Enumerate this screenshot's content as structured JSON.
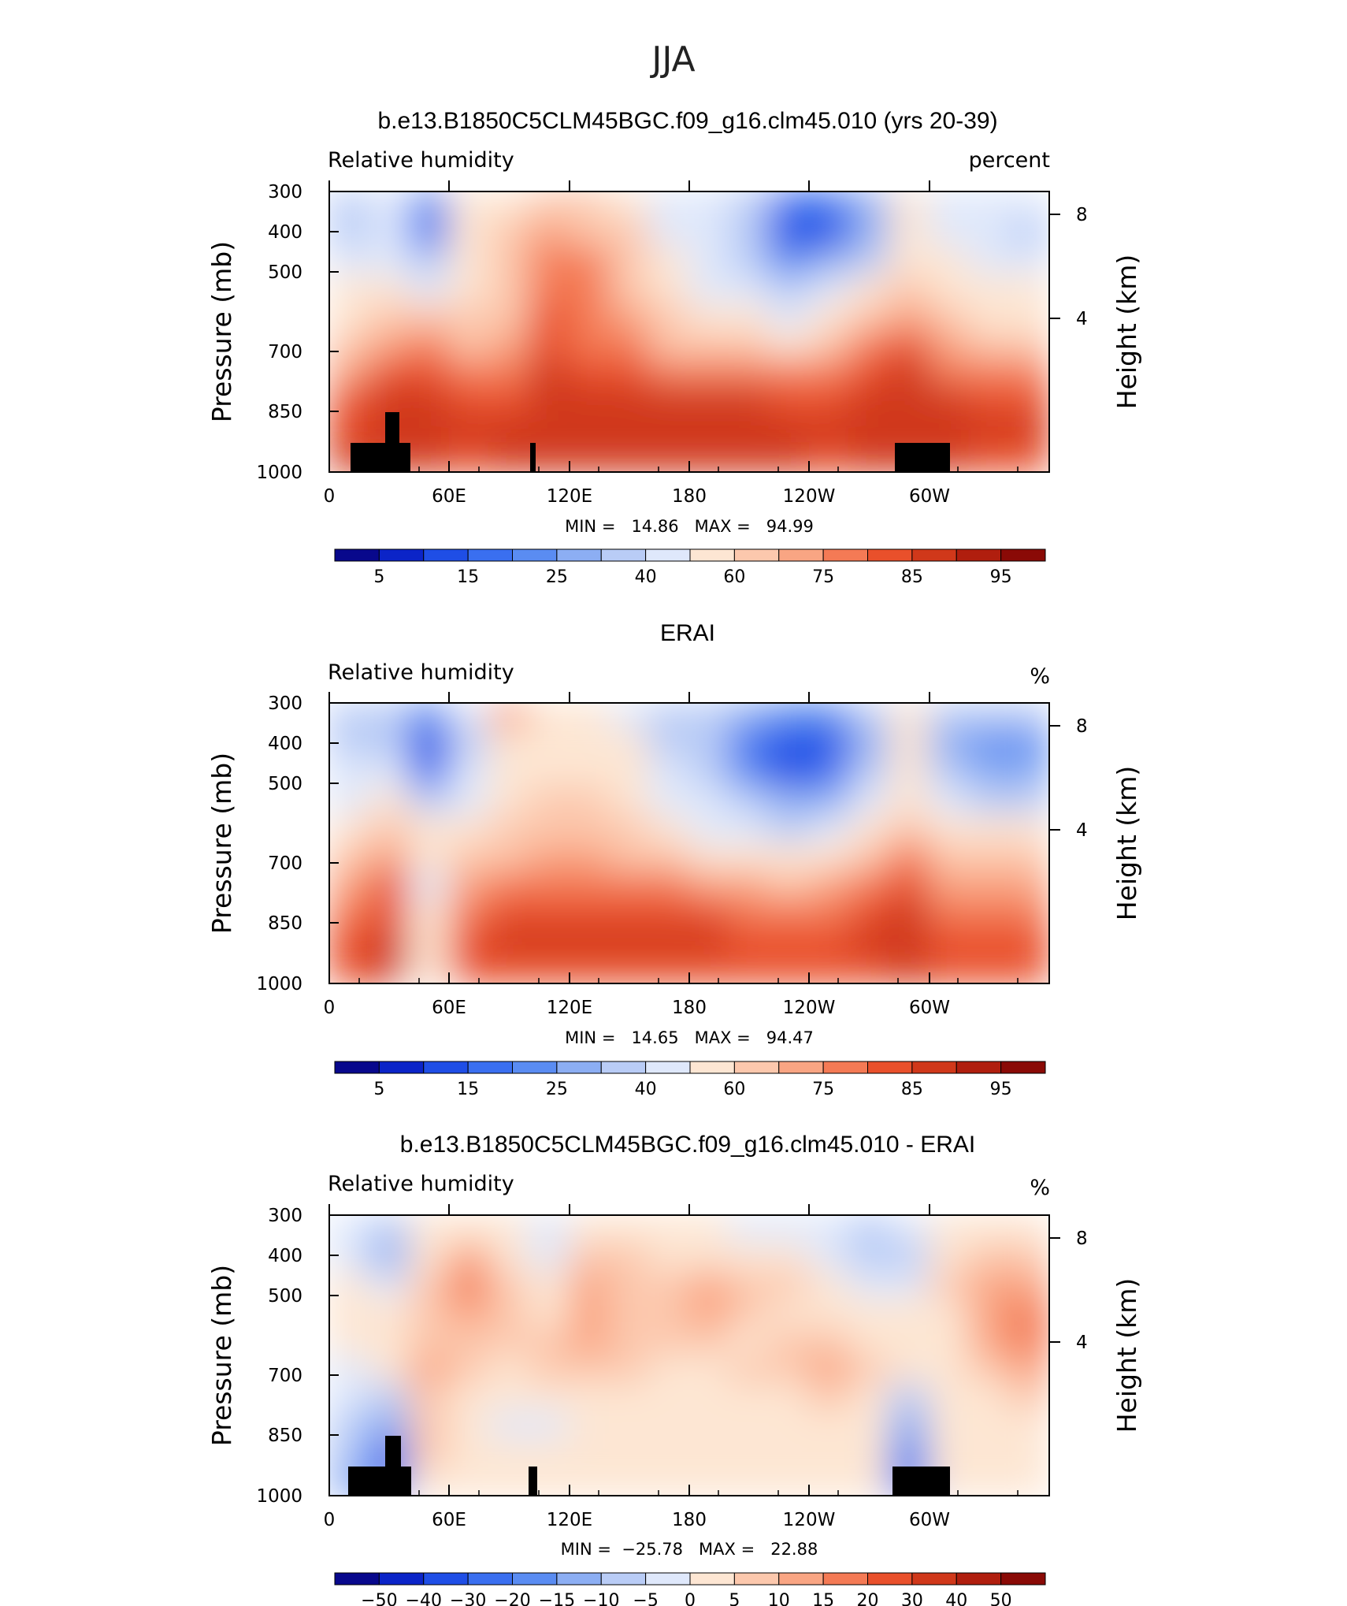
{
  "figure_title": "JJA",
  "chart_data": [
    {
      "type": "heatmap",
      "title": "b.e13.B1850C5CLM45BGC.f09_g16.clm45.010 (yrs 20-39)",
      "variable": "Relative humidity",
      "units": "percent",
      "ylabel": "Pressure (mb)",
      "ylabel_right": "Height (km)",
      "stats": "MIN =   14.86   MAX =   94.99",
      "x_ticks": [
        "0",
        "60E",
        "120E",
        "180",
        "120W",
        "60W"
      ],
      "y_ticks": [
        "300",
        "400",
        "500",
        "700",
        "850",
        "1000"
      ],
      "right_ticks": [
        "8",
        "4"
      ],
      "colorbar_labels": [
        "5",
        "15",
        "25",
        "40",
        "60",
        "75",
        "85",
        "95"
      ],
      "field": [
        [
          40,
          45,
          25,
          55,
          60,
          70,
          62,
          60,
          50,
          50,
          35,
          20,
          20,
          30,
          55,
          45,
          45,
          45
        ],
        [
          40,
          45,
          20,
          58,
          62,
          72,
          70,
          62,
          50,
          48,
          32,
          15,
          15,
          30,
          58,
          45,
          42,
          40
        ],
        [
          50,
          50,
          35,
          58,
          65,
          78,
          76,
          65,
          55,
          45,
          38,
          25,
          30,
          40,
          60,
          55,
          50,
          45
        ],
        [
          55,
          60,
          45,
          60,
          68,
          80,
          80,
          70,
          60,
          50,
          45,
          35,
          42,
          55,
          65,
          60,
          55,
          55
        ],
        [
          60,
          68,
          65,
          65,
          70,
          82,
          78,
          72,
          65,
          58,
          52,
          45,
          55,
          68,
          72,
          65,
          60,
          60
        ],
        [
          65,
          75,
          80,
          70,
          74,
          84,
          80,
          78,
          70,
          66,
          62,
          60,
          68,
          78,
          82,
          75,
          70,
          68
        ],
        [
          72,
          82,
          85,
          78,
          80,
          86,
          84,
          82,
          80,
          78,
          76,
          76,
          78,
          84,
          86,
          80,
          78,
          76
        ],
        [
          82,
          88,
          88,
          84,
          84,
          88,
          88,
          86,
          86,
          86,
          86,
          85,
          84,
          88,
          88,
          86,
          84,
          84
        ],
        [
          85,
          90,
          88,
          86,
          86,
          88,
          88,
          88,
          88,
          90,
          90,
          88,
          86,
          90,
          90,
          88,
          86,
          86
        ],
        [
          86,
          88,
          86,
          85,
          86,
          86,
          86,
          86,
          86,
          88,
          88,
          86,
          84,
          88,
          88,
          86,
          85,
          85
        ]
      ]
    },
    {
      "type": "heatmap",
      "title": "ERAI",
      "variable": "Relative humidity",
      "units": "%",
      "ylabel": "Pressure (mb)",
      "ylabel_right": "Height (km)",
      "stats": "MIN =   14.65   MAX =   94.47",
      "x_ticks": [
        "0",
        "60E",
        "120E",
        "180",
        "120W",
        "60W"
      ],
      "y_ticks": [
        "300",
        "400",
        "500",
        "700",
        "850",
        "1000"
      ],
      "right_ticks": [
        "8",
        "4"
      ],
      "colorbar_labels": [
        "5",
        "15",
        "25",
        "40",
        "60",
        "75",
        "85",
        "95"
      ],
      "field": [
        [
          35,
          40,
          25,
          50,
          72,
          58,
          55,
          50,
          40,
          35,
          28,
          22,
          25,
          35,
          55,
          35,
          35,
          40
        ],
        [
          35,
          38,
          15,
          40,
          55,
          58,
          56,
          52,
          40,
          32,
          20,
          12,
          15,
          30,
          55,
          30,
          22,
          25
        ],
        [
          42,
          45,
          20,
          45,
          58,
          60,
          58,
          52,
          42,
          35,
          22,
          15,
          20,
          35,
          58,
          35,
          30,
          30
        ],
        [
          50,
          55,
          35,
          50,
          60,
          62,
          62,
          58,
          50,
          42,
          32,
          28,
          30,
          42,
          60,
          45,
          40,
          40
        ],
        [
          60,
          68,
          55,
          55,
          62,
          66,
          68,
          64,
          58,
          50,
          42,
          38,
          45,
          55,
          70,
          55,
          52,
          52
        ],
        [
          68,
          75,
          60,
          62,
          66,
          72,
          74,
          70,
          66,
          60,
          55,
          55,
          60,
          68,
          76,
          65,
          62,
          62
        ],
        [
          75,
          82,
          50,
          72,
          76,
          78,
          80,
          78,
          76,
          74,
          72,
          70,
          72,
          78,
          82,
          74,
          72,
          72
        ],
        [
          80,
          84,
          55,
          80,
          84,
          84,
          84,
          84,
          84,
          82,
          80,
          80,
          80,
          82,
          86,
          80,
          80,
          80
        ],
        [
          84,
          86,
          60,
          84,
          86,
          86,
          86,
          86,
          86,
          86,
          84,
          84,
          84,
          86,
          88,
          84,
          84,
          84
        ],
        [
          84,
          86,
          60,
          84,
          84,
          84,
          84,
          84,
          84,
          84,
          84,
          84,
          84,
          85,
          86,
          84,
          84,
          84
        ]
      ]
    },
    {
      "type": "heatmap",
      "title": "b.e13.B1850C5CLM45BGC.f09_g16.clm45.010 - ERAI",
      "variable": "Relative humidity",
      "units": "%",
      "ylabel": "Pressure (mb)",
      "ylabel_right": "Height (km)",
      "stats": "MIN =  −25.78   MAX =   22.88",
      "x_ticks": [
        "0",
        "60E",
        "120E",
        "180",
        "120W",
        "60W"
      ],
      "y_ticks": [
        "300",
        "400",
        "500",
        "700",
        "850",
        "1000"
      ],
      "right_ticks": [
        "8",
        "4"
      ],
      "colorbar_labels": [
        "−50",
        "−40",
        "−30",
        "−20",
        "−15",
        "−10",
        "−5",
        "0",
        "5",
        "10",
        "15",
        "20",
        "30",
        "40",
        "50"
      ],
      "field": [
        [
          -3,
          -6,
          2,
          4,
          3,
          -4,
          3,
          4,
          4,
          2,
          -3,
          -3,
          -4,
          -7,
          -3,
          2,
          3,
          4
        ],
        [
          -4,
          -10,
          4,
          12,
          5,
          -2,
          10,
          6,
          5,
          4,
          1,
          1,
          -2,
          -5,
          -8,
          3,
          6,
          8
        ],
        [
          1,
          -4,
          6,
          16,
          8,
          2,
          14,
          8,
          10,
          14,
          8,
          6,
          2,
          -2,
          -3,
          6,
          12,
          15
        ],
        [
          1,
          2,
          6,
          12,
          9,
          4,
          14,
          10,
          10,
          11,
          9,
          5,
          3,
          2,
          1,
          4,
          12,
          16
        ],
        [
          1,
          3,
          10,
          9,
          6,
          8,
          12,
          8,
          6,
          6,
          5,
          8,
          10,
          4,
          2,
          4,
          13,
          18
        ],
        [
          0,
          2,
          14,
          7,
          5,
          8,
          9,
          6,
          4,
          4,
          6,
          10,
          13,
          6,
          3,
          5,
          10,
          12
        ],
        [
          -3,
          -5,
          10,
          4,
          2,
          4,
          5,
          3,
          3,
          3,
          3,
          5,
          7,
          2,
          -5,
          4,
          5,
          6
        ],
        [
          -6,
          -12,
          8,
          3,
          -2,
          -1,
          2,
          2,
          1,
          2,
          1,
          2,
          3,
          1,
          -12,
          3,
          3,
          4
        ],
        [
          -8,
          -20,
          6,
          2,
          1,
          1,
          2,
          3,
          3,
          2,
          1,
          2,
          2,
          1,
          -18,
          2,
          2,
          2
        ],
        [
          -10,
          -22,
          4,
          2,
          1,
          1,
          1,
          2,
          2,
          2,
          1,
          2,
          1,
          1,
          -20,
          2,
          2,
          2
        ]
      ]
    }
  ]
}
